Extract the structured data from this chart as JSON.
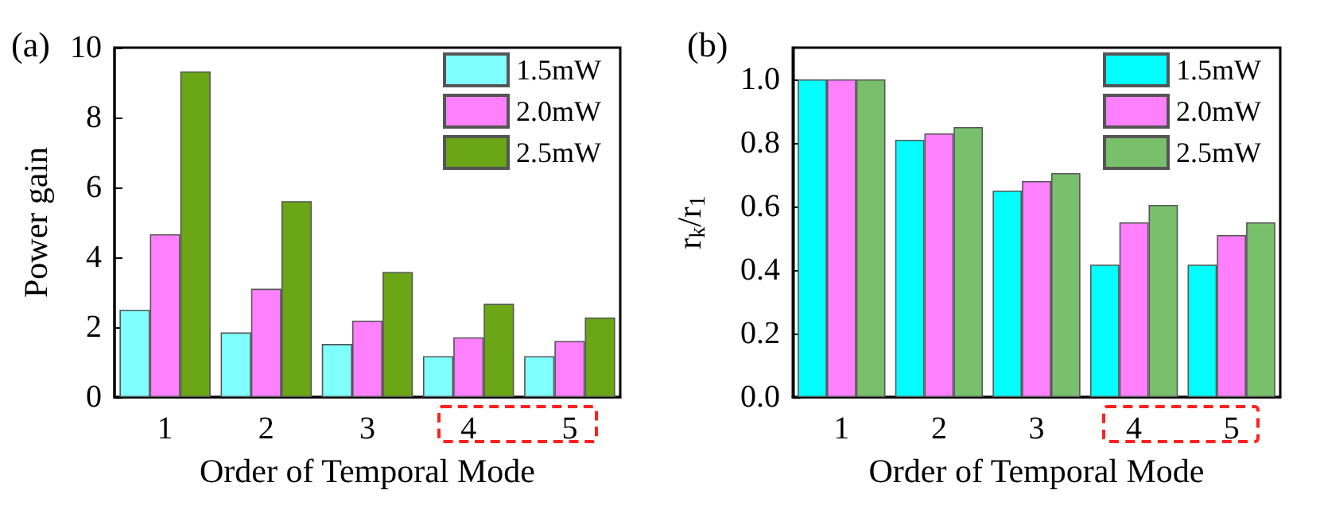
{
  "chart_data": [
    {
      "type": "bar",
      "title": "(a)",
      "xlabel": "Order of Temporal Mode",
      "ylabel": "Power gain",
      "categories": [
        "1",
        "2",
        "3",
        "4",
        "5"
      ],
      "series": [
        {
          "name": "1.5mW",
          "color": "#80ffff",
          "values": [
            2.5,
            1.85,
            1.52,
            1.17,
            1.17
          ]
        },
        {
          "name": "2.0mW",
          "color": "#ff80ff",
          "values": [
            4.66,
            3.1,
            2.19,
            1.71,
            1.61
          ]
        },
        {
          "name": "2.5mW",
          "color": "#6aa616",
          "values": [
            9.32,
            5.61,
            3.58,
            2.67,
            2.28
          ]
        }
      ],
      "ylim": [
        0,
        10
      ],
      "yticks": [
        0,
        2,
        4,
        6,
        8,
        10
      ],
      "grid": false,
      "legend": "top right"
    },
    {
      "type": "bar",
      "title": "(b)",
      "xlabel": "Order of Temporal Mode",
      "ylabel": "r$_{k}$/r$_{1}$",
      "categories": [
        "1",
        "2",
        "3",
        "4",
        "5"
      ],
      "series": [
        {
          "name": "1.5mW",
          "color": "#00ffff",
          "values": [
            1.0,
            0.81,
            0.65,
            0.417,
            0.417
          ]
        },
        {
          "name": "2.0mW",
          "color": "#ff80ff",
          "values": [
            1.0,
            0.83,
            0.68,
            0.55,
            0.51
          ]
        },
        {
          "name": "2.5mW",
          "color": "#78c06c",
          "values": [
            1.0,
            0.85,
            0.705,
            0.605,
            0.55
          ]
        }
      ],
      "ylim": [
        0,
        1.1
      ],
      "yticks": [
        {
          "value": 0,
          "label": "0.0"
        },
        0.2,
        0.4,
        0.6,
        0.8,
        {
          "value": 1,
          "label": "1.0"
        }
      ],
      "grid": false,
      "legend": "top right"
    }
  ]
}
